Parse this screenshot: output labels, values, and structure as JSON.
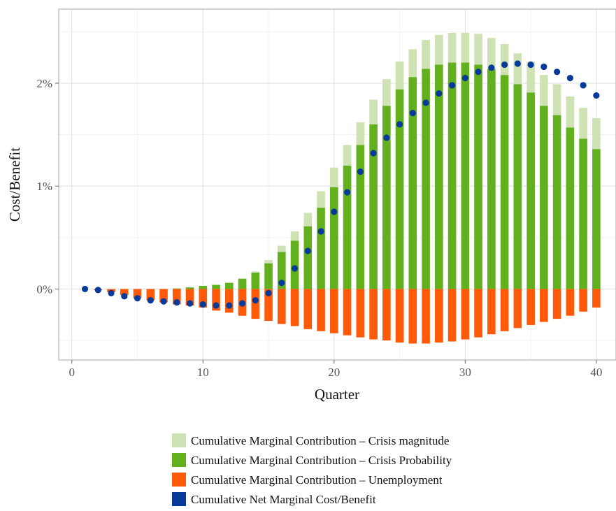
{
  "chart_data": {
    "type": "bar",
    "xlabel": "Quarter",
    "ylabel": "Cost/Benefit",
    "xlim": [
      -1,
      41.5
    ],
    "ylim": [
      -0.69,
      2.72
    ],
    "x_ticks": [
      0,
      10,
      20,
      30,
      40
    ],
    "y_ticks": [
      0,
      1,
      2
    ],
    "y_tick_labels": [
      "0%",
      "1%",
      "2%"
    ],
    "grid": true,
    "legend_position": "bottom",
    "x": [
      1,
      2,
      3,
      4,
      5,
      6,
      7,
      8,
      9,
      10,
      11,
      12,
      13,
      14,
      15,
      16,
      17,
      18,
      19,
      20,
      21,
      22,
      23,
      24,
      25,
      26,
      27,
      28,
      29,
      30,
      31,
      32,
      33,
      34,
      35,
      36,
      37,
      38,
      39,
      40
    ],
    "series": [
      {
        "name": "Cumulative Marginal Contribution – Crisis magnitude",
        "kind": "bar",
        "color": "#cfe2b4",
        "values": [
          0,
          0,
          0,
          0,
          0,
          0,
          0,
          0,
          0,
          0,
          0,
          0,
          0,
          0.01,
          0.03,
          0.06,
          0.09,
          0.13,
          0.16,
          0.19,
          0.2,
          0.22,
          0.24,
          0.26,
          0.27,
          0.27,
          0.28,
          0.29,
          0.29,
          0.29,
          0.3,
          0.3,
          0.3,
          0.3,
          0.3,
          0.3,
          0.3,
          0.3,
          0.3,
          0.3
        ]
      },
      {
        "name": "Cumulative Marginal Contribution – Crisis Probability",
        "kind": "bar",
        "color": "#62b01d",
        "values": [
          0,
          0,
          0,
          0,
          0,
          0,
          0,
          0.005,
          0.015,
          0.03,
          0.04,
          0.06,
          0.1,
          0.16,
          0.25,
          0.36,
          0.47,
          0.61,
          0.79,
          0.99,
          1.2,
          1.4,
          1.6,
          1.78,
          1.94,
          2.06,
          2.14,
          2.18,
          2.2,
          2.2,
          2.18,
          2.14,
          2.08,
          1.99,
          1.91,
          1.78,
          1.69,
          1.57,
          1.46,
          1.36
        ]
      },
      {
        "name": "Cumulative Marginal Contribution – Unemployment",
        "kind": "bar",
        "color": "#ff5a0a",
        "values": [
          0,
          -0.01,
          -0.03,
          -0.06,
          -0.09,
          -0.11,
          -0.13,
          -0.15,
          -0.16,
          -0.18,
          -0.21,
          -0.23,
          -0.26,
          -0.29,
          -0.31,
          -0.34,
          -0.36,
          -0.39,
          -0.41,
          -0.43,
          -0.45,
          -0.47,
          -0.49,
          -0.5,
          -0.52,
          -0.53,
          -0.53,
          -0.52,
          -0.51,
          -0.49,
          -0.47,
          -0.44,
          -0.41,
          -0.38,
          -0.35,
          -0.32,
          -0.29,
          -0.26,
          -0.22,
          -0.18
        ]
      },
      {
        "name": "Cumulative Net Marginal Cost/Benefit",
        "kind": "point",
        "color": "#073a99",
        "values": [
          0.0,
          -0.01,
          -0.04,
          -0.07,
          -0.09,
          -0.11,
          -0.12,
          -0.13,
          -0.14,
          -0.15,
          -0.16,
          -0.16,
          -0.14,
          -0.11,
          -0.04,
          0.06,
          0.2,
          0.37,
          0.56,
          0.75,
          0.94,
          1.14,
          1.32,
          1.47,
          1.6,
          1.71,
          1.81,
          1.9,
          1.98,
          2.05,
          2.11,
          2.15,
          2.18,
          2.19,
          2.18,
          2.16,
          2.11,
          2.05,
          1.98,
          1.88
        ]
      }
    ]
  }
}
